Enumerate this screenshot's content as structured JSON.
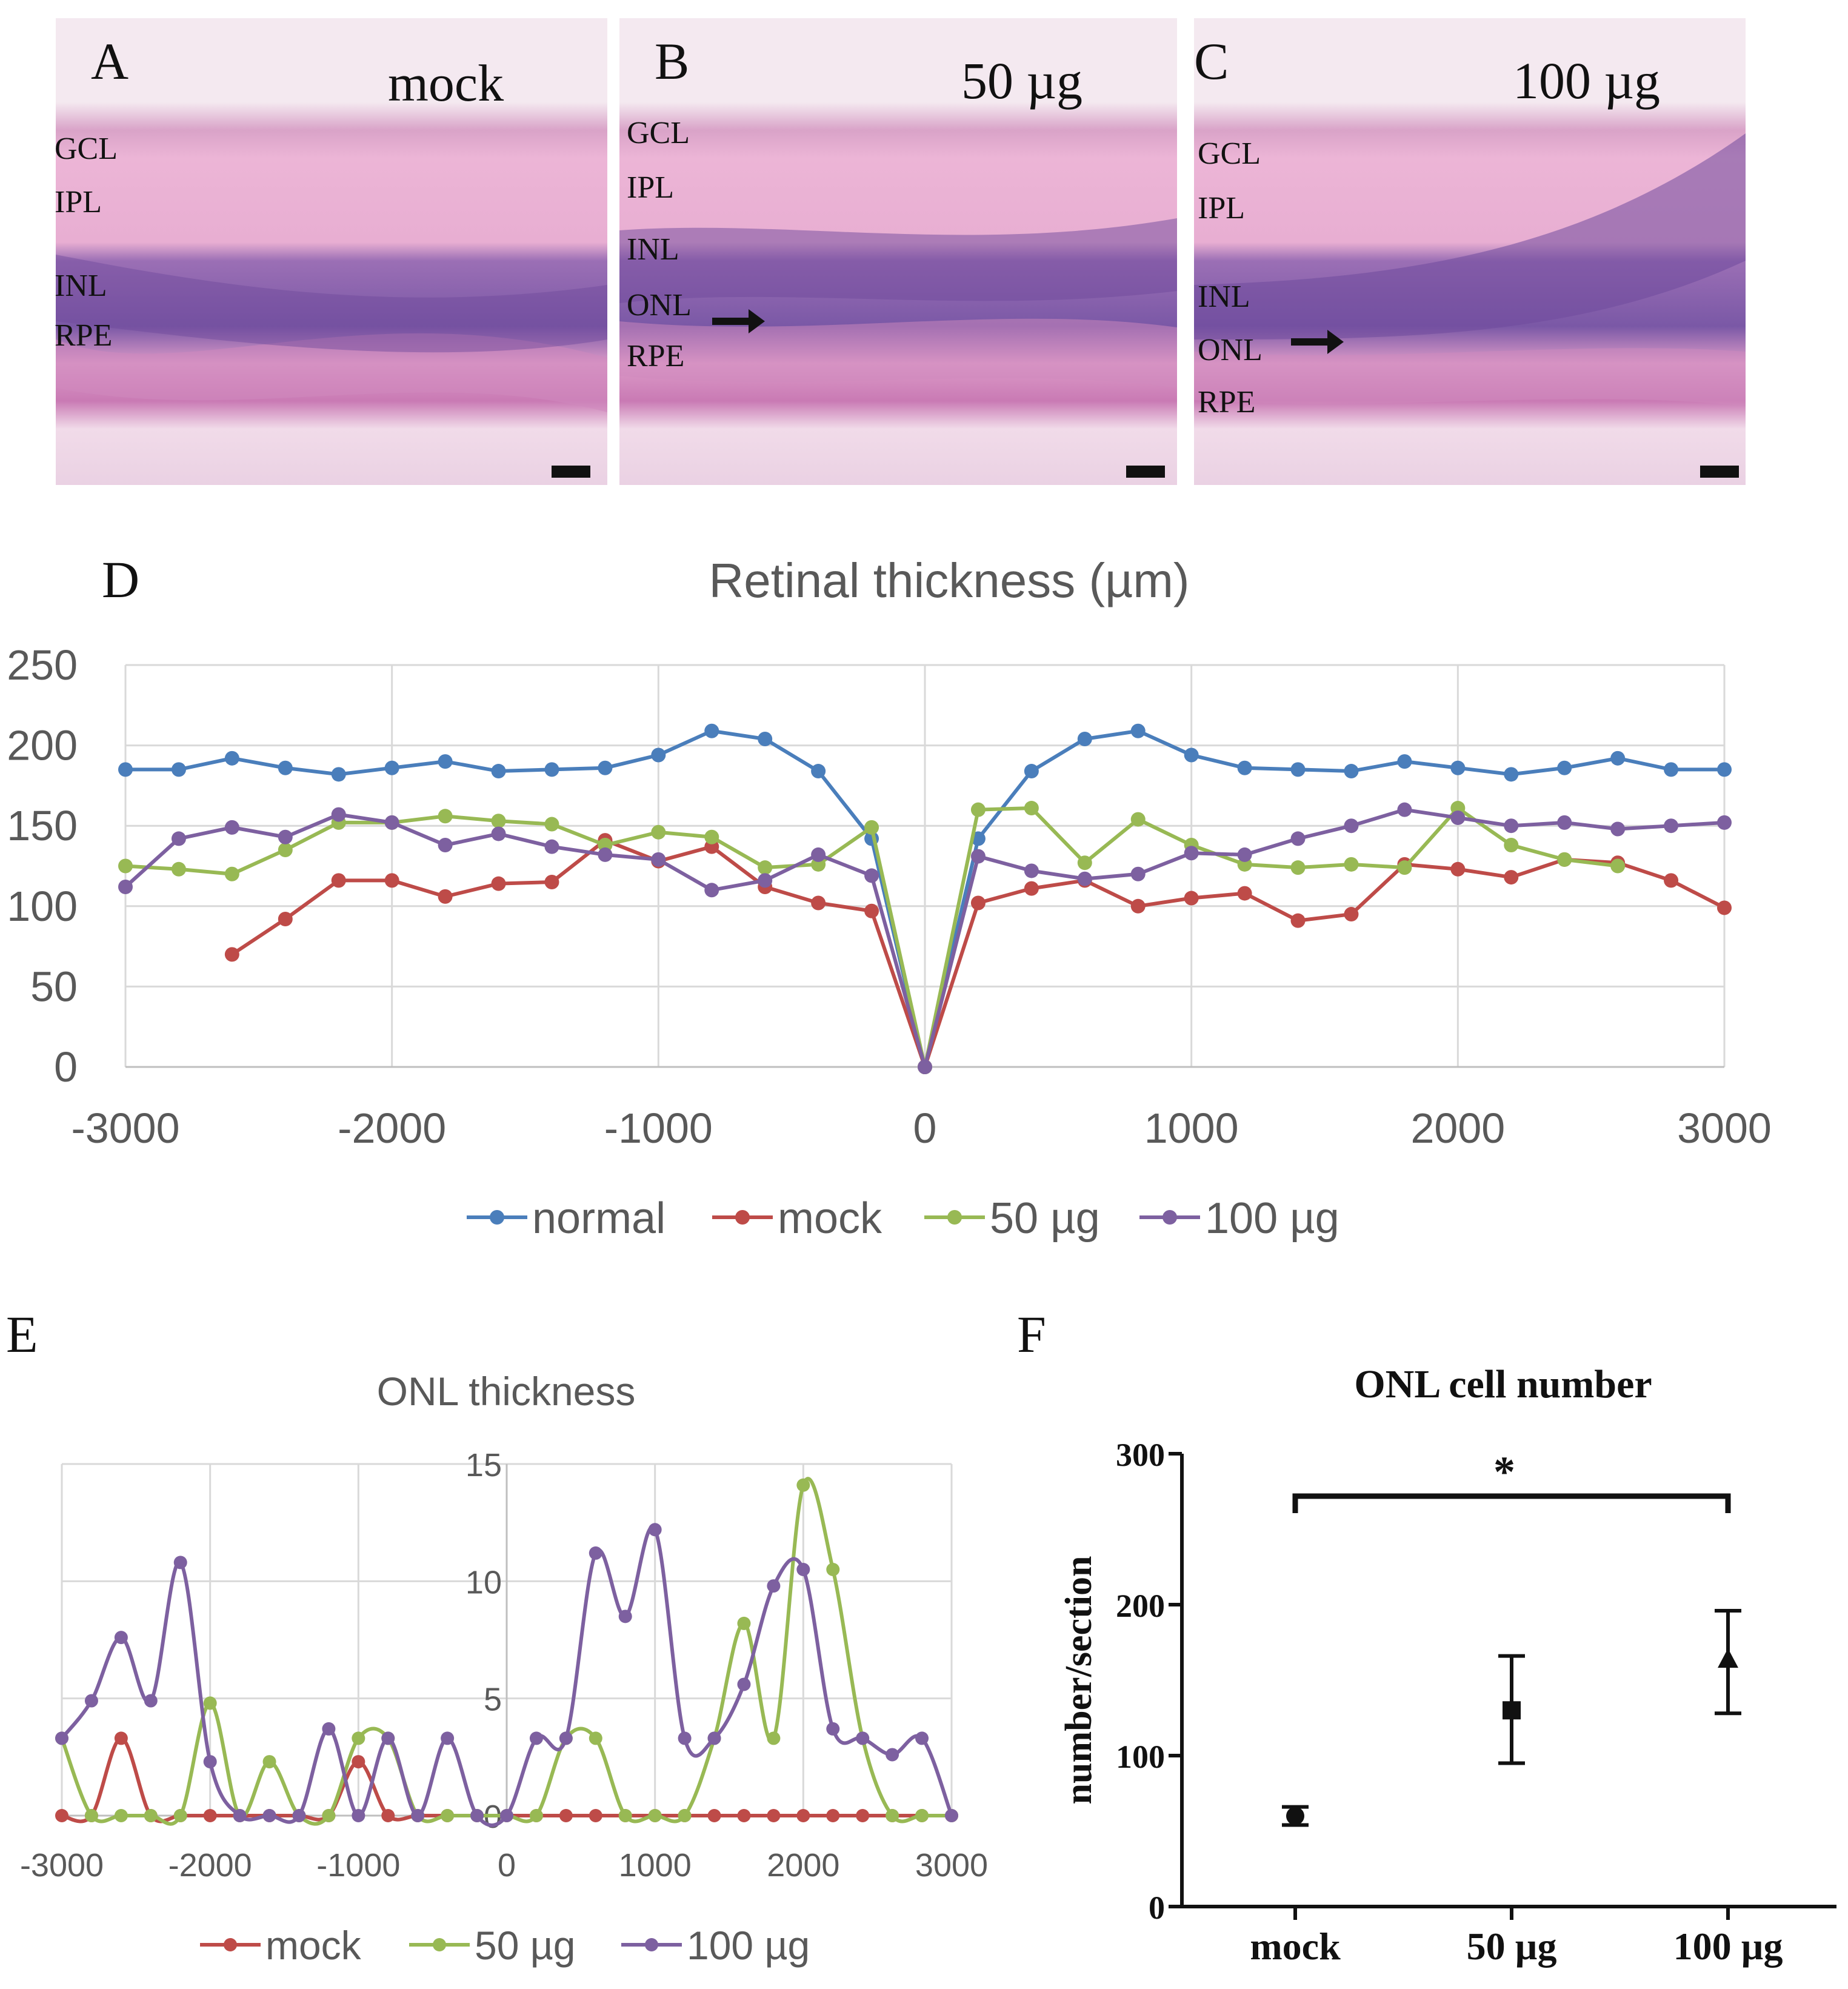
{
  "panels": {
    "A": {
      "letter": "A",
      "condition": "mock",
      "layers": [
        "GCL",
        "IPL",
        "INL",
        "RPE"
      ]
    },
    "B": {
      "letter": "B",
      "condition": "50 µg",
      "layers": [
        "GCL",
        "IPL",
        "INL",
        "ONL",
        "RPE"
      ]
    },
    "C": {
      "letter": "C",
      "condition": "100 µg",
      "layers": [
        "GCL",
        "IPL",
        "INL",
        "ONL",
        "RPE"
      ]
    },
    "D": {
      "letter": "D"
    },
    "E": {
      "letter": "E"
    },
    "F": {
      "letter": "F"
    }
  },
  "colors": {
    "normal": "#4a7ebb",
    "mock": "#be4b48",
    "dose50": "#98b954",
    "dose100": "#7d60a0",
    "tissue_pink": "#e7a6cf",
    "tissue_purple": "#8a5aa8",
    "background_tissue": "#f3dcea"
  },
  "chart_data": [
    {
      "id": "D",
      "type": "line",
      "title": "Retinal thickness (µm)",
      "xlabel": "",
      "ylabel": "",
      "xlim": [
        -3000,
        3000
      ],
      "ylim": [
        0,
        250
      ],
      "xticks": [
        "-3000",
        "-2000",
        "-1000",
        "0",
        "1000",
        "2000",
        "3000"
      ],
      "yticks": [
        "0",
        "50",
        "100",
        "150",
        "200",
        "250"
      ],
      "legend": "bottom",
      "series": [
        {
          "name": "normal",
          "color": "#4a7ebb",
          "x": [
            -3000,
            -2800,
            -2600,
            -2400,
            -2200,
            -2000,
            -1800,
            -1600,
            -1400,
            -1200,
            -1000,
            -800,
            -600,
            -400,
            -200,
            0,
            200,
            400,
            600,
            800,
            1000,
            1200,
            1400,
            1600,
            1800,
            2000,
            2200,
            2400,
            2600,
            2800,
            3000
          ],
          "y": [
            185,
            185,
            192,
            186,
            182,
            186,
            190,
            184,
            185,
            186,
            194,
            209,
            204,
            184,
            142,
            0,
            142,
            184,
            204,
            209,
            194,
            186,
            185,
            184,
            190,
            186,
            182,
            186,
            192,
            185,
            185
          ]
        },
        {
          "name": "mock",
          "color": "#be4b48",
          "x": [
            -2600,
            -2400,
            -2200,
            -2000,
            -1800,
            -1600,
            -1400,
            -1200,
            -1000,
            -800,
            -600,
            -400,
            -200,
            0,
            200,
            400,
            600,
            800,
            1000,
            1200,
            1400,
            1600,
            1800,
            2000,
            2200,
            2400,
            2600,
            2800,
            3000
          ],
          "y": [
            70,
            92,
            116,
            116,
            106,
            114,
            115,
            141,
            128,
            137,
            112,
            102,
            97,
            0,
            102,
            111,
            116,
            100,
            105,
            108,
            91,
            95,
            126,
            123,
            118,
            129,
            127,
            116,
            99
          ]
        },
        {
          "name": "50 µg",
          "color": "#98b954",
          "x": [
            -3000,
            -2800,
            -2600,
            -2400,
            -2200,
            -2000,
            -1800,
            -1600,
            -1400,
            -1200,
            -1000,
            -800,
            -600,
            -400,
            -200,
            0,
            200,
            400,
            600,
            800,
            1000,
            1200,
            1400,
            1600,
            1800,
            2000,
            2200,
            2400,
            2600
          ],
          "y": [
            125,
            123,
            120,
            135,
            152,
            152,
            156,
            153,
            151,
            138,
            146,
            143,
            124,
            126,
            149,
            0,
            160,
            161,
            127,
            154,
            138,
            126,
            124,
            126,
            124,
            161,
            138,
            129,
            125
          ]
        },
        {
          "name": "100 µg",
          "color": "#7d60a0",
          "x": [
            -3000,
            -2800,
            -2600,
            -2400,
            -2200,
            -2000,
            -1800,
            -1600,
            -1400,
            -1200,
            -1000,
            -800,
            -600,
            -400,
            -200,
            0,
            200,
            400,
            600,
            800,
            1000,
            1200,
            1400,
            1600,
            1800,
            2000,
            2200,
            2400,
            2600,
            2800,
            3000
          ],
          "y": [
            112,
            142,
            149,
            143,
            157,
            152,
            138,
            145,
            137,
            132,
            129,
            110,
            116,
            132,
            119,
            0,
            131,
            122,
            117,
            120,
            133,
            132,
            142,
            150,
            160,
            155,
            150,
            152,
            148,
            150,
            152
          ]
        }
      ]
    },
    {
      "id": "E",
      "type": "line",
      "title": "ONL thickness",
      "xlabel": "",
      "ylabel": "",
      "xlim": [
        -3000,
        3000
      ],
      "ylim": [
        0,
        15
      ],
      "xticks": [
        "-3000",
        "-2000",
        "-1000",
        "0",
        "1000",
        "2000",
        "3000"
      ],
      "yticks": [
        "0",
        "5",
        "10",
        "15"
      ],
      "legend": "bottom",
      "series": [
        {
          "name": "mock",
          "color": "#be4b48",
          "x": [
            -3000,
            -2800,
            -2600,
            -2400,
            -2200,
            -2000,
            -1800,
            -1600,
            -1400,
            -1200,
            -1000,
            -800,
            -600,
            -400,
            -200,
            0,
            200,
            400,
            600,
            800,
            1000,
            1200,
            1400,
            1600,
            1800,
            2000,
            2200,
            2400,
            2600,
            2800,
            3000
          ],
          "y": [
            0,
            0,
            3.3,
            0,
            0,
            0,
            0,
            0,
            0,
            0,
            2.3,
            0,
            0,
            0,
            0,
            0,
            0,
            0,
            0,
            0,
            0,
            0,
            0,
            0,
            0,
            0,
            0,
            0,
            0,
            0,
            0
          ]
        },
        {
          "name": "50 µg",
          "color": "#98b954",
          "x": [
            -3000,
            -2800,
            -2600,
            -2400,
            -2200,
            -2000,
            -1800,
            -1600,
            -1400,
            -1200,
            -1000,
            -800,
            -600,
            -400,
            -200,
            0,
            200,
            400,
            600,
            800,
            1000,
            1200,
            1400,
            1600,
            1800,
            2000,
            2200,
            2400,
            2600,
            2800,
            3000
          ],
          "y": [
            3.3,
            0,
            0,
            0,
            0,
            4.8,
            0,
            2.3,
            0,
            0,
            3.3,
            3.3,
            0,
            0,
            0,
            0,
            0,
            3.3,
            3.3,
            0,
            0,
            0,
            3.3,
            8.2,
            3.3,
            14.1,
            10.5,
            3.3,
            0,
            0,
            0
          ]
        },
        {
          "name": "100 µg",
          "color": "#7d60a0",
          "x": [
            -3000,
            -2800,
            -2600,
            -2400,
            -2200,
            -2000,
            -1800,
            -1600,
            -1400,
            -1200,
            -1000,
            -800,
            -600,
            -400,
            -200,
            0,
            200,
            400,
            600,
            800,
            1000,
            1200,
            1400,
            1600,
            1800,
            2000,
            2200,
            2400,
            2600,
            2800,
            3000
          ],
          "y": [
            3.3,
            4.9,
            7.6,
            4.9,
            10.8,
            2.3,
            0,
            0,
            0,
            3.7,
            0,
            3.3,
            0,
            3.3,
            0,
            0,
            3.3,
            3.3,
            11.2,
            8.5,
            12.2,
            3.3,
            3.3,
            5.6,
            9.8,
            10.5,
            3.7,
            3.3,
            2.6,
            3.3,
            0
          ]
        }
      ]
    },
    {
      "id": "F",
      "type": "scatter",
      "title": "ONL cell number",
      "xlabel": "",
      "ylabel": "number/section",
      "ylim": [
        0,
        300
      ],
      "yticks": [
        "0",
        "100",
        "200",
        "300"
      ],
      "categories": [
        "mock",
        "50 µg",
        "100 µg"
      ],
      "values": [
        60,
        130,
        163
      ],
      "errors": [
        [
          54,
          66
        ],
        [
          95,
          166
        ],
        [
          128,
          196
        ]
      ],
      "markers": [
        "circle",
        "square",
        "triangle"
      ],
      "significance": {
        "from": "mock",
        "to": "100 µg",
        "label": "*"
      }
    }
  ]
}
